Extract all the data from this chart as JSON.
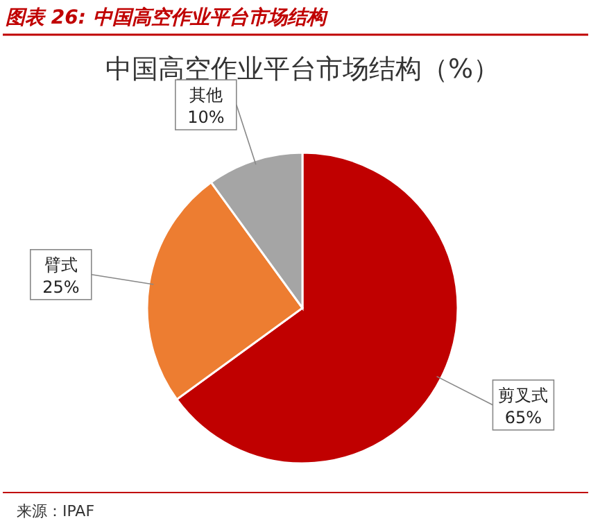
{
  "chart_data": {
    "type": "pie",
    "title": "图表 26:  中国高空作业平台市场结构",
    "subtitle": "中国高空作业平台市场结构（%）",
    "categories": [
      "剪叉式",
      "臂式",
      "其他"
    ],
    "values": [
      65,
      25,
      10
    ],
    "colors": [
      "#c00000",
      "#ed7d31",
      "#a5a5a5"
    ],
    "value_labels": [
      "65%",
      "25%",
      "10%"
    ],
    "annotations": [
      "来源：IPAF"
    ]
  }
}
